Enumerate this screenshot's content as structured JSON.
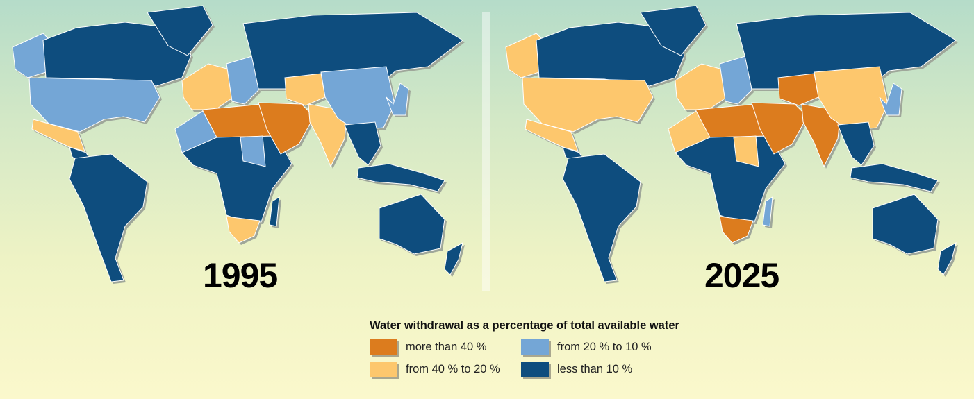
{
  "legend": {
    "title": "Water withdrawal as a percentage of total available water",
    "items": [
      {
        "key": "gt40",
        "label": "more than 40 %",
        "color": "#dc7c1e"
      },
      {
        "key": "20to10",
        "label": "from 20 % to 10 %",
        "color": "#74a6d6"
      },
      {
        "key": "40to20",
        "label": "from 40 % to 20 %",
        "color": "#fdc76d"
      },
      {
        "key": "lt10",
        "label": "less than 10 %",
        "color": "#0e4d7e"
      }
    ]
  },
  "maps": [
    {
      "year": "1995",
      "regions": {
        "alaska": "20to10",
        "canada": "lt10",
        "greenland": "lt10",
        "usa": "20to10",
        "mexico": "40to20",
        "central-america": "lt10",
        "south-america": "lt10",
        "europe-west": "40to20",
        "europe-east": "20to10",
        "russia": "lt10",
        "north-africa": "gt40",
        "west-africa": "20to10",
        "sub-saharan-africa": "lt10",
        "sudan": "20to10",
        "southern-africa": "40to20",
        "middle-east": "gt40",
        "central-asia": "40to20",
        "india": "40to20",
        "china": "20to10",
        "korea-japan": "20to10",
        "southeast-asia": "lt10",
        "indonesia": "lt10",
        "australia": "lt10",
        "new-zealand": "lt10",
        "madagascar": "lt10"
      }
    },
    {
      "year": "2025",
      "regions": {
        "alaska": "40to20",
        "canada": "lt10",
        "greenland": "lt10",
        "usa": "40to20",
        "mexico": "40to20",
        "central-america": "lt10",
        "south-america": "lt10",
        "europe-west": "40to20",
        "europe-east": "20to10",
        "russia": "lt10",
        "north-africa": "gt40",
        "west-africa": "40to20",
        "sub-saharan-africa": "lt10",
        "sudan": "40to20",
        "southern-africa": "gt40",
        "middle-east": "gt40",
        "central-asia": "gt40",
        "india": "gt40",
        "china": "40to20",
        "korea-japan": "20to10",
        "southeast-asia": "lt10",
        "indonesia": "lt10",
        "australia": "lt10",
        "new-zealand": "lt10",
        "madagascar": "20to10"
      }
    }
  ]
}
